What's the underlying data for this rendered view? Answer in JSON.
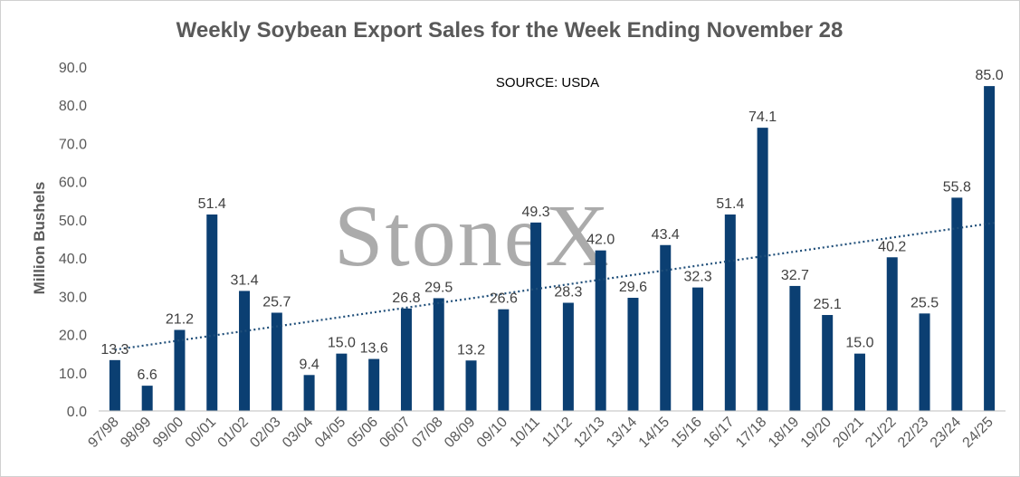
{
  "chart_data": {
    "type": "bar",
    "title": "Weekly Soybean Export Sales for the Week Ending November 28",
    "annotation": "SOURCE: USDA",
    "watermark": "StoneX",
    "ylabel": "Million Bushels",
    "xlabel": "",
    "ylim": [
      0,
      90
    ],
    "yticks": [
      "0.0",
      "10.0",
      "20.0",
      "30.0",
      "40.0",
      "50.0",
      "60.0",
      "70.0",
      "80.0",
      "90.0"
    ],
    "grid": false,
    "legend": "none",
    "trendline": "linear, dotted",
    "colors": {
      "bar": "#0b3f72",
      "trend": "#1f4e79"
    },
    "categories": [
      "97/98",
      "98/99",
      "99/00",
      "00/01",
      "01/02",
      "02/03",
      "03/04",
      "04/05",
      "05/06",
      "06/07",
      "07/08",
      "08/09",
      "09/10",
      "10/11",
      "11/12",
      "12/13",
      "13/14",
      "14/15",
      "15/16",
      "16/17",
      "17/18",
      "18/19",
      "19/20",
      "20/21",
      "21/22",
      "22/23",
      "23/24",
      "24/25"
    ],
    "values": [
      13.3,
      6.6,
      21.2,
      51.4,
      31.4,
      25.7,
      9.4,
      15.0,
      13.6,
      26.8,
      29.5,
      13.2,
      26.6,
      49.3,
      28.3,
      42.0,
      29.6,
      43.4,
      32.3,
      51.4,
      74.1,
      32.7,
      25.1,
      15.0,
      40.2,
      25.5,
      55.8,
      85.0
    ],
    "value_labels": [
      "13.3",
      "6.6",
      "21.2",
      "51.4",
      "31.4",
      "25.7",
      "9.4",
      "15.0",
      "13.6",
      "26.8",
      "29.5",
      "13.2",
      "26.6",
      "49.3",
      "28.3",
      "42.0",
      "29.6",
      "43.4",
      "32.3",
      "51.4",
      "74.1",
      "32.7",
      "25.1",
      "15.0",
      "40.2",
      "25.5",
      "55.8",
      "85.0"
    ]
  }
}
